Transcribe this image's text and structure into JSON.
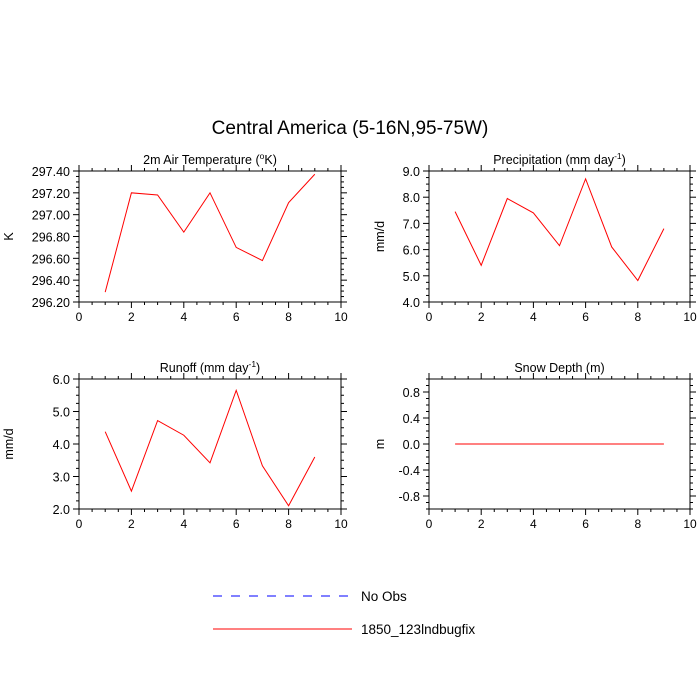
{
  "figure": {
    "title": "Central America (5-16N,95-75W)"
  },
  "legend": {
    "items": [
      {
        "label": "No Obs",
        "color": "#0000ff",
        "dash": true
      },
      {
        "label": "1850_123lndbugfix",
        "color": "#ff0000",
        "dash": false
      }
    ]
  },
  "chart_data": [
    {
      "type": "line",
      "title": "2m Air Temperature (",
      "title_sup": "o",
      "title_post": "K)",
      "ylabel": "K",
      "xlim": [
        0,
        10
      ],
      "ylim": [
        296.2,
        297.4
      ],
      "x_ticks": [
        0,
        2,
        4,
        6,
        8,
        10
      ],
      "x_tick_labels": [
        "0",
        "2",
        "4",
        "6",
        "8",
        "10"
      ],
      "y_ticks": [
        296.2,
        296.4,
        296.6,
        296.8,
        297.0,
        297.2,
        297.4
      ],
      "y_tick_labels": [
        "296.20",
        "296.40",
        "296.60",
        "296.80",
        "297.00",
        "297.20",
        "297.40"
      ],
      "series": [
        {
          "name": "1850_123lndbugfix",
          "color": "#ff0000",
          "x": [
            1,
            2,
            3,
            4,
            5,
            6,
            7,
            8,
            9
          ],
          "y": [
            296.29,
            297.2,
            297.18,
            296.84,
            297.2,
            296.7,
            296.58,
            297.11,
            297.37
          ]
        }
      ]
    },
    {
      "type": "line",
      "title": "Precipitation (mm day",
      "title_sup": "-1",
      "title_post": ")",
      "ylabel": "mm/d",
      "xlim": [
        0,
        10
      ],
      "ylim": [
        4.0,
        9.0
      ],
      "x_ticks": [
        0,
        2,
        4,
        6,
        8,
        10
      ],
      "x_tick_labels": [
        "0",
        "2",
        "4",
        "6",
        "8",
        "10"
      ],
      "y_ticks": [
        4,
        5,
        6,
        7,
        8,
        9
      ],
      "y_tick_labels": [
        "4.0",
        "5.0",
        "6.0",
        "7.0",
        "8.0",
        "9.0"
      ],
      "series": [
        {
          "name": "1850_123lndbugfix",
          "color": "#ff0000",
          "x": [
            1,
            2,
            3,
            4,
            5,
            6,
            7,
            8,
            9
          ],
          "y": [
            7.45,
            5.4,
            7.95,
            7.4,
            6.15,
            8.7,
            6.1,
            4.82,
            6.8
          ]
        }
      ]
    },
    {
      "type": "line",
      "title": "Runoff (mm day",
      "title_sup": "-1",
      "title_post": ")",
      "ylabel": "mm/d",
      "xlim": [
        0,
        10
      ],
      "ylim": [
        2.0,
        6.0
      ],
      "x_ticks": [
        0,
        2,
        4,
        6,
        8,
        10
      ],
      "x_tick_labels": [
        "0",
        "2",
        "4",
        "6",
        "8",
        "10"
      ],
      "y_ticks": [
        2,
        3,
        4,
        5,
        6
      ],
      "y_tick_labels": [
        "2.0",
        "3.0",
        "4.0",
        "5.0",
        "6.0"
      ],
      "series": [
        {
          "name": "1850_123lndbugfix",
          "color": "#ff0000",
          "x": [
            1,
            2,
            3,
            4,
            5,
            6,
            7,
            8,
            9
          ],
          "y": [
            4.38,
            2.55,
            4.72,
            4.27,
            3.42,
            5.65,
            3.33,
            2.1,
            3.6
          ]
        }
      ]
    },
    {
      "type": "line",
      "title": "Snow Depth (m)",
      "title_sup": "",
      "title_post": "",
      "ylabel": "m",
      "xlim": [
        0,
        10
      ],
      "ylim": [
        -1.0,
        1.0
      ],
      "x_ticks": [
        0,
        2,
        4,
        6,
        8,
        10
      ],
      "x_tick_labels": [
        "0",
        "2",
        "4",
        "6",
        "8",
        "10"
      ],
      "y_ticks": [
        -0.8,
        -0.4,
        0.0,
        0.4,
        0.8
      ],
      "y_tick_labels": [
        "-0.8",
        "-0.4",
        "0.0",
        "0.4",
        "0.8"
      ],
      "series": [
        {
          "name": "1850_123lndbugfix",
          "color": "#ff0000",
          "x": [
            1,
            2,
            3,
            4,
            5,
            6,
            7,
            8,
            9
          ],
          "y": [
            0,
            0,
            0,
            0,
            0,
            0,
            0,
            0,
            0
          ]
        }
      ]
    }
  ]
}
